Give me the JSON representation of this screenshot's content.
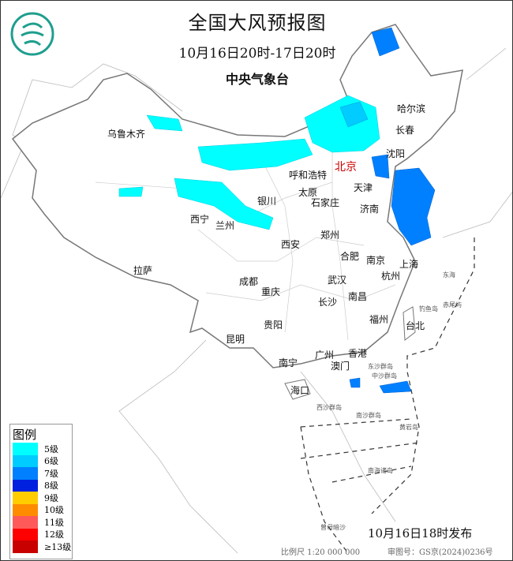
{
  "header": {
    "title": "全国大风预报图",
    "period": "10月16日20时-17日20时",
    "agency": "中央气象台"
  },
  "logo": {
    "icon": "cma-logo",
    "color": "#1e9e8e"
  },
  "cities": [
    "乌鲁木齐",
    "哈尔滨",
    "长春",
    "沈阳",
    "北京",
    "天津",
    "呼和浩特",
    "银川",
    "太原",
    "石家庄",
    "济南",
    "西宁",
    "兰州",
    "西安",
    "郑州",
    "合肥",
    "南京",
    "上海",
    "杭州",
    "拉萨",
    "成都",
    "重庆",
    "武汉",
    "南昌",
    "长沙",
    "福州",
    "台北",
    "贵阳",
    "昆明",
    "广州",
    "香港",
    "澳门",
    "南宁",
    "海口"
  ],
  "sea_labels": [
    "东海",
    "钓鱼岛",
    "赤尾屿",
    "东沙群岛",
    "中沙群岛",
    "西沙群岛",
    "南沙群岛",
    "黄岩岛",
    "南海诸岛",
    "曾母暗沙"
  ],
  "legend": {
    "title": "图例",
    "items": [
      {
        "label": "5级",
        "color": "#00ffff"
      },
      {
        "label": "6级",
        "color": "#00ccff"
      },
      {
        "label": "7级",
        "color": "#0080ff"
      },
      {
        "label": "8级",
        "color": "#0020e0"
      },
      {
        "label": "9级",
        "color": "#ffcc00"
      },
      {
        "label": "10级",
        "color": "#ff8c00"
      },
      {
        "label": "11级",
        "color": "#ff5a5a"
      },
      {
        "label": "12级",
        "color": "#ff0000"
      },
      {
        "label": "≥13级",
        "color": "#c80000"
      }
    ]
  },
  "footer": {
    "issued": "10月16日18时发布",
    "scale": "比例尺 1:20 000 000",
    "review": "审图号：GS京(2024)0236号"
  }
}
